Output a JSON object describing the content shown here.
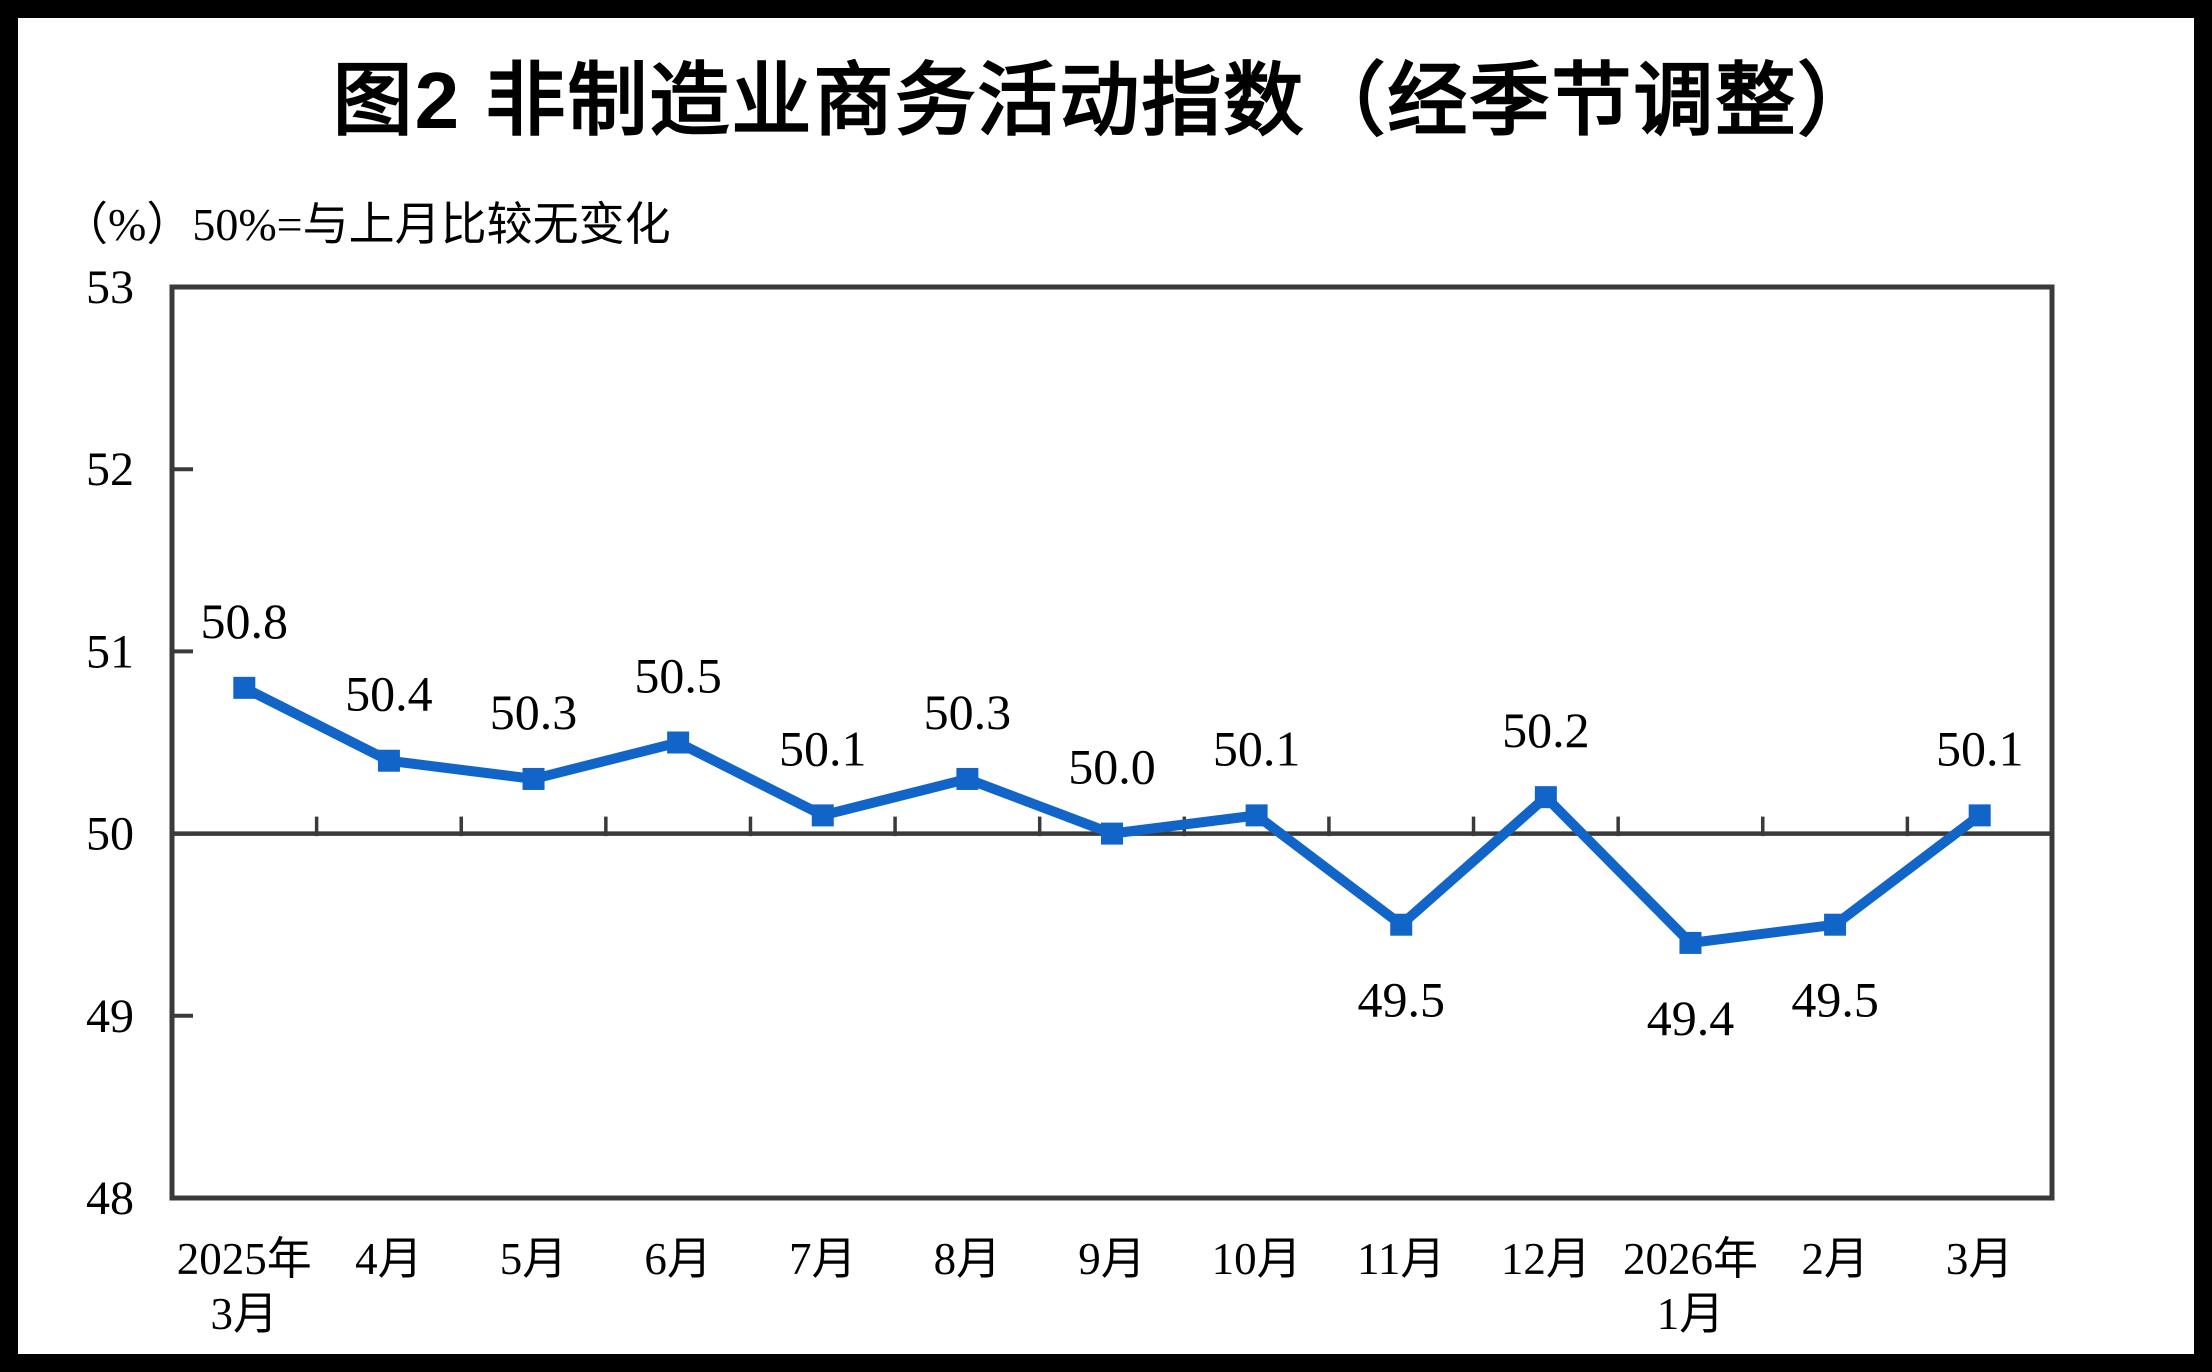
{
  "page": {
    "background_color": "#ffffff",
    "frame_color": "#000000"
  },
  "title": "图2 非制造业商务活动指数（经季节调整）",
  "subtitle": "（%）50%=与上月比较无变化",
  "chart_data": {
    "type": "line",
    "title": "图2 非制造业商务活动指数（经季节调整）",
    "unit_note": "（%）50%=与上月比较无变化",
    "categories": [
      "2025年\n3月",
      "4月",
      "5月",
      "6月",
      "7月",
      "8月",
      "9月",
      "10月",
      "11月",
      "12月",
      "2026年\n1月",
      "2月",
      "3月"
    ],
    "series": [
      {
        "name": "非制造业商务活动指数（经季节调整）",
        "values": [
          50.8,
          50.4,
          50.3,
          50.5,
          50.1,
          50.3,
          50.0,
          50.1,
          49.5,
          50.2,
          49.4,
          49.5,
          50.1
        ],
        "data_labels": [
          "50.8",
          "50.4",
          "50.3",
          "50.5",
          "50.1",
          "50.3",
          "50.0",
          "50.1",
          "49.5",
          "50.2",
          "49.4",
          "49.5",
          "50.1"
        ],
        "label_positions": [
          "above",
          "above",
          "above",
          "above",
          "above",
          "above",
          "above",
          "above",
          "below",
          "above",
          "below",
          "below",
          "above"
        ],
        "color": "#1164C8",
        "marker": "square"
      }
    ],
    "ylim": [
      48,
      53
    ],
    "yticks": [
      48,
      49,
      50,
      51,
      52,
      53
    ],
    "reference_line_y": 50,
    "grid": false,
    "legend": "none",
    "axis_color": "#3A3A3A",
    "text_color": "#000000"
  }
}
